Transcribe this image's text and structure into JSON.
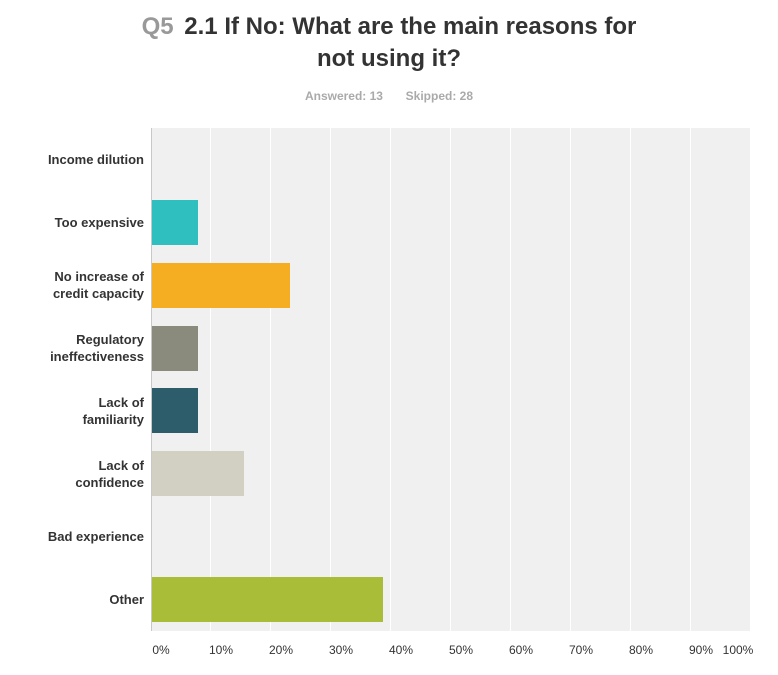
{
  "header": {
    "question_number": "Q5",
    "question_text": "2.1 If No: What are the main reasons for not using it?",
    "answered": "Answered: 13",
    "skipped": "Skipped: 28"
  },
  "chart_data": {
    "type": "bar",
    "orientation": "horizontal",
    "categories": [
      "Income dilution",
      "Too expensive",
      "No increase of credit capacity",
      "Regulatory ineffectiveness",
      "Lack of familiarity",
      "Lack of confidence",
      "Bad experience",
      "Other"
    ],
    "category_lines": [
      "Income dilution",
      "Too expensive",
      "No increase of\ncredit capacity",
      "Regulatory\nineffectiveness",
      "Lack of\nfamiliarity",
      "Lack of\nconfidence",
      "Bad experience",
      "Other"
    ],
    "values": [
      0,
      7.69,
      23.08,
      7.69,
      7.69,
      15.38,
      0,
      38.46
    ],
    "colors": [
      "#2fbfbf",
      "#2fbfbf",
      "#f5ad22",
      "#8a8b7c",
      "#2d5d6b",
      "#d1d0c3",
      "#2fbfbf",
      "#a9bd38"
    ],
    "x_ticks": [
      "0%",
      "10%",
      "20%",
      "30%",
      "40%",
      "50%",
      "60%",
      "70%",
      "80%",
      "90%",
      "100%"
    ],
    "xlim": [
      0,
      100
    ],
    "grid": true,
    "plot_background": "#f0f0f0"
  }
}
